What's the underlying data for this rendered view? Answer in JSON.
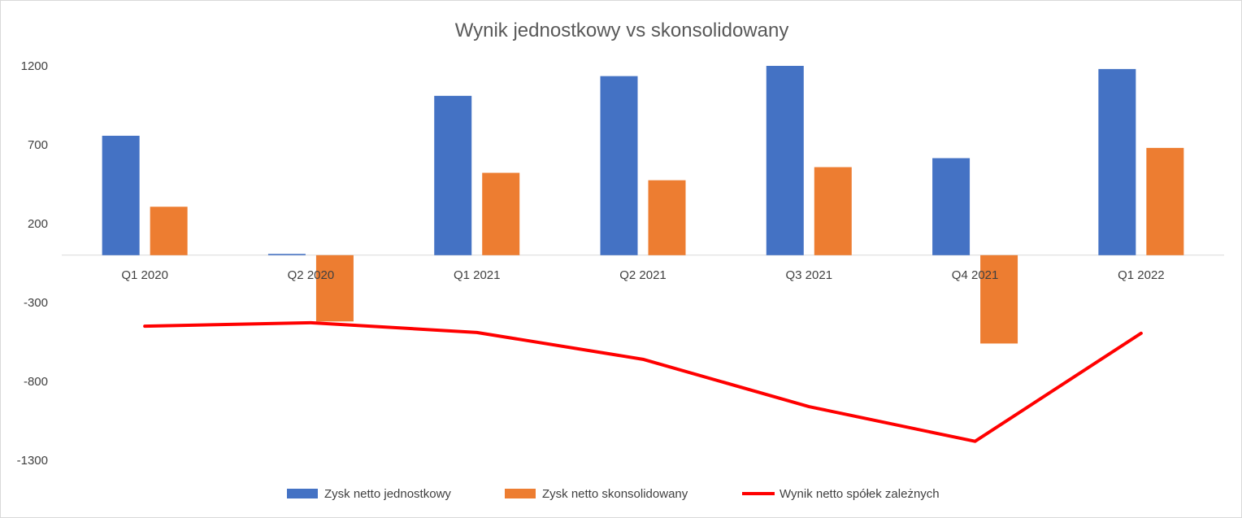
{
  "chart_data": {
    "type": "bar",
    "title": "Wynik jednostkowy vs skonsolidowany",
    "categories": [
      "Q1 2020",
      "Q2 2020",
      "Q1 2021",
      "Q2 2021",
      "Q3 2021",
      "Q4 2021",
      "Q1 2022"
    ],
    "y_ticks": [
      "1200",
      "700",
      "200",
      "-300",
      "-800",
      "-1300"
    ],
    "y_tick_values": [
      1200,
      700,
      200,
      -300,
      -800,
      -1300
    ],
    "ylim": [
      -1300,
      1200
    ],
    "grid": false,
    "legend_position": "bottom",
    "series": [
      {
        "name": "Zysk netto jednostkowy",
        "kind": "bar",
        "color": "#4472C4",
        "values": [
          757,
          8,
          1010,
          1135,
          1200,
          615,
          1180
        ]
      },
      {
        "name": "Zysk netto skonsolidowany",
        "kind": "bar",
        "color": "#ED7D31",
        "values": [
          307,
          -420,
          522,
          475,
          558,
          -560,
          680
        ]
      },
      {
        "name": "Wynik netto spółek zależnych",
        "kind": "line",
        "color": "#FF0000",
        "values": [
          -450,
          -428,
          -490,
          -660,
          -960,
          -1180,
          -495
        ]
      }
    ]
  }
}
